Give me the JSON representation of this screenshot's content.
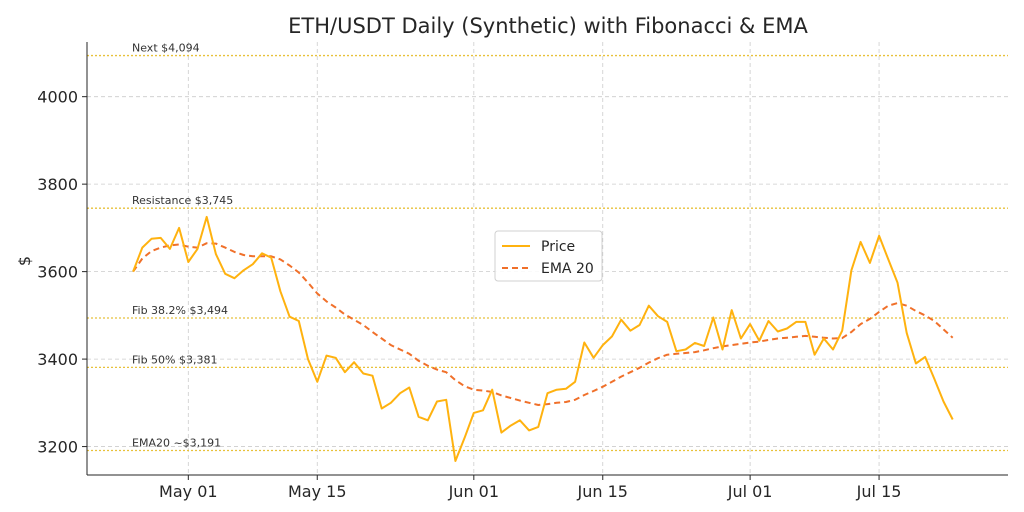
{
  "chart_data": {
    "type": "line",
    "title": "ETH/USDT Daily (Synthetic) with Fibonacci & EMA",
    "xlabel": "",
    "ylabel": "$",
    "xlim": [
      "2025-04-20",
      "2025-07-29"
    ],
    "ylim": [
      3135,
      4125
    ],
    "grid": true,
    "legend_position": "center",
    "x_ticks": [
      {
        "date": "2025-05-01",
        "label": "May 01"
      },
      {
        "date": "2025-05-15",
        "label": "May 15"
      },
      {
        "date": "2025-06-01",
        "label": "Jun 01"
      },
      {
        "date": "2025-06-15",
        "label": "Jun 15"
      },
      {
        "date": "2025-07-01",
        "label": "Jul 01"
      },
      {
        "date": "2025-07-15",
        "label": "Jul 15"
      }
    ],
    "y_ticks": [
      3200,
      3400,
      3600,
      3800,
      4000
    ],
    "x_start": "2025-04-25",
    "series": [
      {
        "name": "Price",
        "color": "#FFB20F",
        "style": "solid",
        "values": [
          3600,
          3655,
          3675,
          3677,
          3652,
          3700,
          3622,
          3652,
          3725,
          3640,
          3595,
          3585,
          3603,
          3617,
          3642,
          3632,
          3555,
          3497,
          3487,
          3400,
          3348,
          3408,
          3403,
          3370,
          3393,
          3367,
          3362,
          3287,
          3300,
          3322,
          3335,
          3268,
          3260,
          3303,
          3307,
          3167,
          3220,
          3277,
          3283,
          3330,
          3232,
          3248,
          3260,
          3237,
          3245,
          3322,
          3330,
          3332,
          3348,
          3438,
          3403,
          3432,
          3452,
          3490,
          3465,
          3478,
          3522,
          3498,
          3485,
          3418,
          3422,
          3437,
          3430,
          3495,
          3422,
          3512,
          3447,
          3480,
          3442,
          3487,
          3463,
          3470,
          3485,
          3485,
          3410,
          3447,
          3422,
          3465,
          3603,
          3668,
          3620,
          3682,
          3628,
          3575,
          3460,
          3390,
          3405,
          3355,
          3303,
          3262
        ]
      },
      {
        "name": "EMA 20",
        "color": "#F0702A",
        "style": "dashed",
        "values": [
          3600,
          3630,
          3647,
          3655,
          3660,
          3662,
          3657,
          3655,
          3665,
          3664,
          3655,
          3645,
          3638,
          3635,
          3635,
          3635,
          3628,
          3614,
          3598,
          3575,
          3550,
          3532,
          3518,
          3502,
          3490,
          3478,
          3462,
          3447,
          3432,
          3422,
          3412,
          3396,
          3385,
          3376,
          3370,
          3352,
          3338,
          3330,
          3328,
          3325,
          3317,
          3311,
          3305,
          3300,
          3295,
          3297,
          3300,
          3302,
          3307,
          3318,
          3327,
          3337,
          3348,
          3360,
          3370,
          3380,
          3392,
          3402,
          3410,
          3412,
          3414,
          3416,
          3420,
          3425,
          3429,
          3432,
          3435,
          3438,
          3440,
          3444,
          3447,
          3449,
          3451,
          3453,
          3451,
          3449,
          3447,
          3448,
          3462,
          3480,
          3492,
          3508,
          3522,
          3528,
          3522,
          3510,
          3500,
          3487,
          3468,
          3449
        ]
      }
    ],
    "hlines": [
      {
        "value": 4094,
        "label": "Next $4,094"
      },
      {
        "value": 3745,
        "label": "Resistance $3,745"
      },
      {
        "value": 3494,
        "label": "Fib 38.2% $3,494"
      },
      {
        "value": 3381,
        "label": "Fib 50% $3,381"
      },
      {
        "value": 3191,
        "label": "EMA20 ~$3,191"
      }
    ],
    "hline_color": "#E8C13A"
  }
}
